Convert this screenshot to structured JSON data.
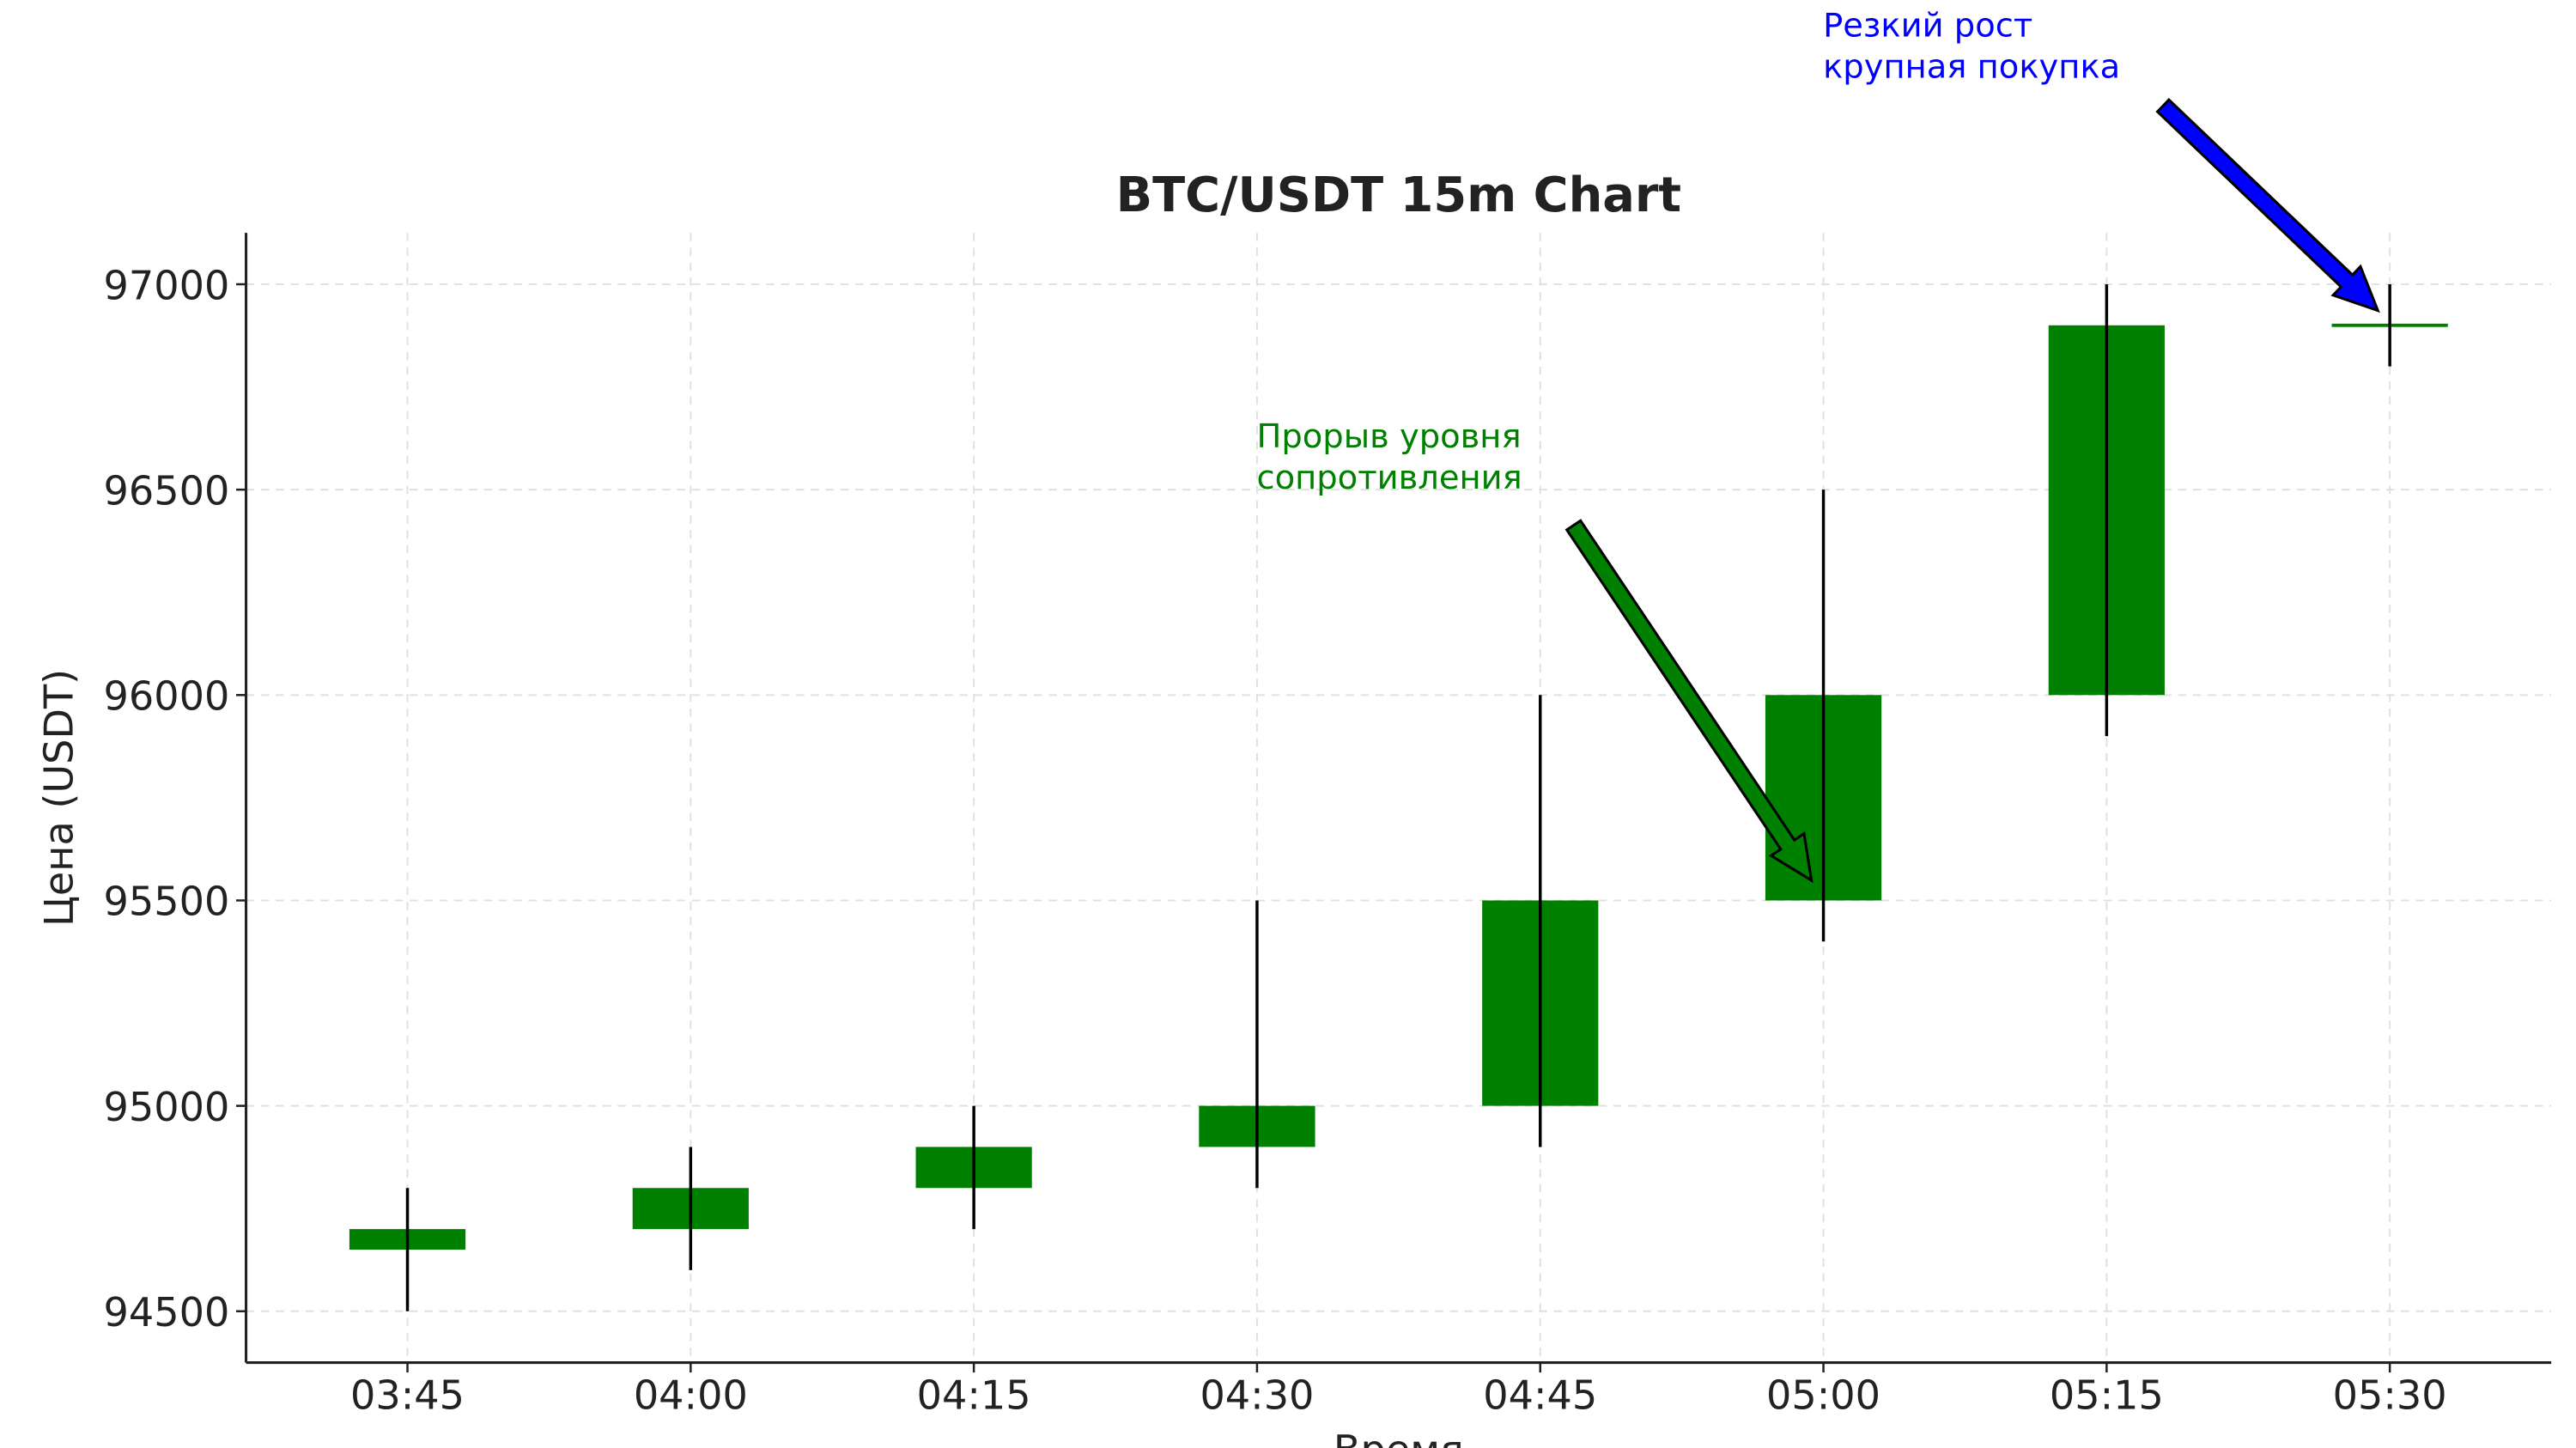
{
  "chart_data": {
    "type": "candlestick",
    "title": "BTC/USDT 15m Chart",
    "x_label": "Время",
    "y_label": "Цена (USDT)",
    "categories": [
      "03:45",
      "04:00",
      "04:15",
      "04:30",
      "04:45",
      "05:00",
      "05:15",
      "05:30"
    ],
    "open": [
      94650,
      94700,
      94800,
      94900,
      95000,
      95500,
      96000,
      96900
    ],
    "high": [
      94800,
      94900,
      95000,
      95500,
      96000,
      96500,
      97000,
      97000
    ],
    "low": [
      94500,
      94600,
      94700,
      94800,
      94900,
      95400,
      95900,
      96800
    ],
    "close": [
      94700,
      94800,
      94900,
      95000,
      95500,
      96000,
      96900,
      96900
    ],
    "color": "#008000",
    "wick_color": "#000000",
    "ylim": [
      94375,
      97125
    ],
    "yticks": [
      94500,
      95000,
      95500,
      96000,
      96500,
      97000
    ],
    "grid": true,
    "annotations": [
      {
        "text": [
          "Прорыв уровня",
          "сопротивления"
        ],
        "color": "#008000"
      },
      {
        "text": [
          "Резкий рост",
          "крупная покупка"
        ],
        "color": "#0000ff"
      }
    ]
  }
}
